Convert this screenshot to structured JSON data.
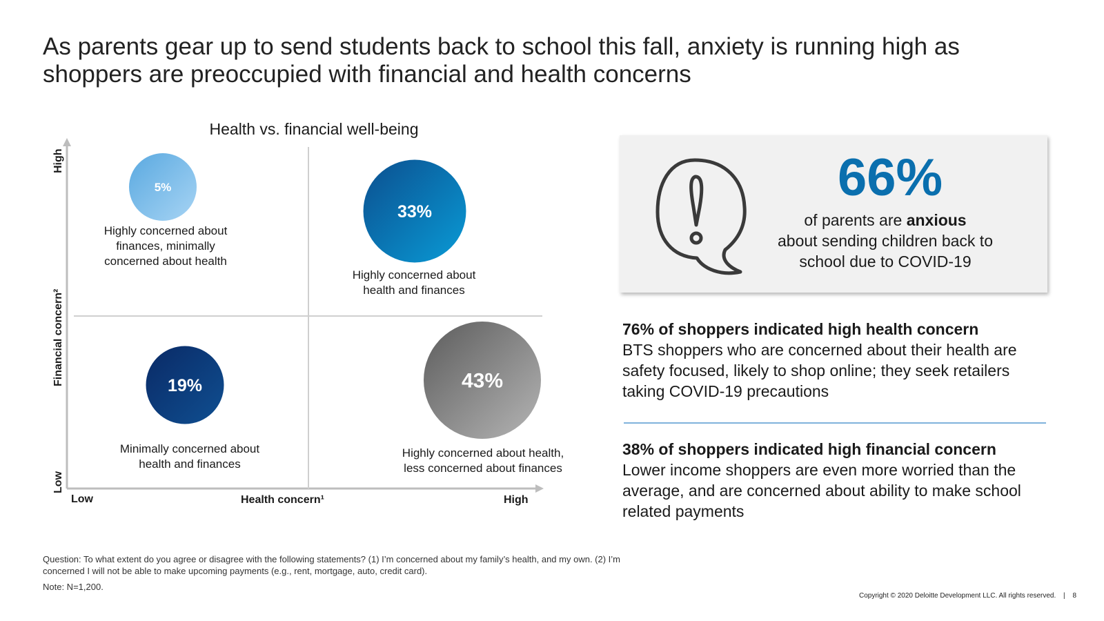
{
  "page": {
    "title": "As parents gear up to send students back to school this fall, anxiety is running high as shoppers are preoccupied with financial and health concerns"
  },
  "chart_data": {
    "type": "scatter",
    "title": "Health vs. financial well-being",
    "xlabel": "Health concern¹",
    "ylabel": "Financial concern²",
    "x_tick_labels": {
      "low": "Low",
      "high": "High"
    },
    "y_tick_labels": {
      "low": "Low",
      "high": "High"
    },
    "quadrants": [
      {
        "id": "fin-only",
        "health": "low",
        "financial": "high",
        "value": 5,
        "label": "5%",
        "caption": [
          "Highly concerned about",
          "finances, minimally",
          "concerned about health"
        ],
        "color": "#74b9e8"
      },
      {
        "id": "both",
        "health": "high",
        "financial": "high",
        "value": 33,
        "label": "33%",
        "caption": [
          "Highly concerned about",
          "health and finances"
        ],
        "color": "#0a6fae"
      },
      {
        "id": "neither",
        "health": "low",
        "financial": "low",
        "value": 19,
        "label": "19%",
        "caption": [
          "Minimally concerned about",
          "health and finances"
        ],
        "color": "#0d3b7a"
      },
      {
        "id": "health-only",
        "health": "high",
        "financial": "low",
        "value": 43,
        "label": "43%",
        "caption": [
          "Highly concerned about health,",
          "less concerned about finances"
        ],
        "color": "#7a7a7a"
      }
    ]
  },
  "callout": {
    "percent": "66%",
    "line1_prefix": "of parents are ",
    "line1_bold": "anxious",
    "line2": "about sending children back to",
    "line3": "school due to COVID-19",
    "icon": "question-speech-bubble-icon"
  },
  "insights": [
    {
      "heading": "76% of shoppers indicated high health concern",
      "body": "BTS shoppers who are concerned about their health are safety focused, likely to shop online; they seek retailers taking COVID-19 precautions"
    },
    {
      "heading": "38% of shoppers indicated high financial concern",
      "body": "Lower income shoppers are even more worried than the average, and are concerned about ability to make school related payments"
    }
  ],
  "footnotes": {
    "question": "Question: To what extent do you agree or disagree with the following statements? (1) I’m concerned about my family’s health, and my own. (2) I’m concerned I will not be able to make upcoming payments (e.g., rent, mortgage, auto, credit card).",
    "note": "Note: N=1,200."
  },
  "copyright": "Copyright © 2020 Deloitte Development LLC. All rights reserved.",
  "page_number": "8",
  "colors": {
    "accent": "#0a6fae",
    "divider": "#7fb2dc"
  }
}
